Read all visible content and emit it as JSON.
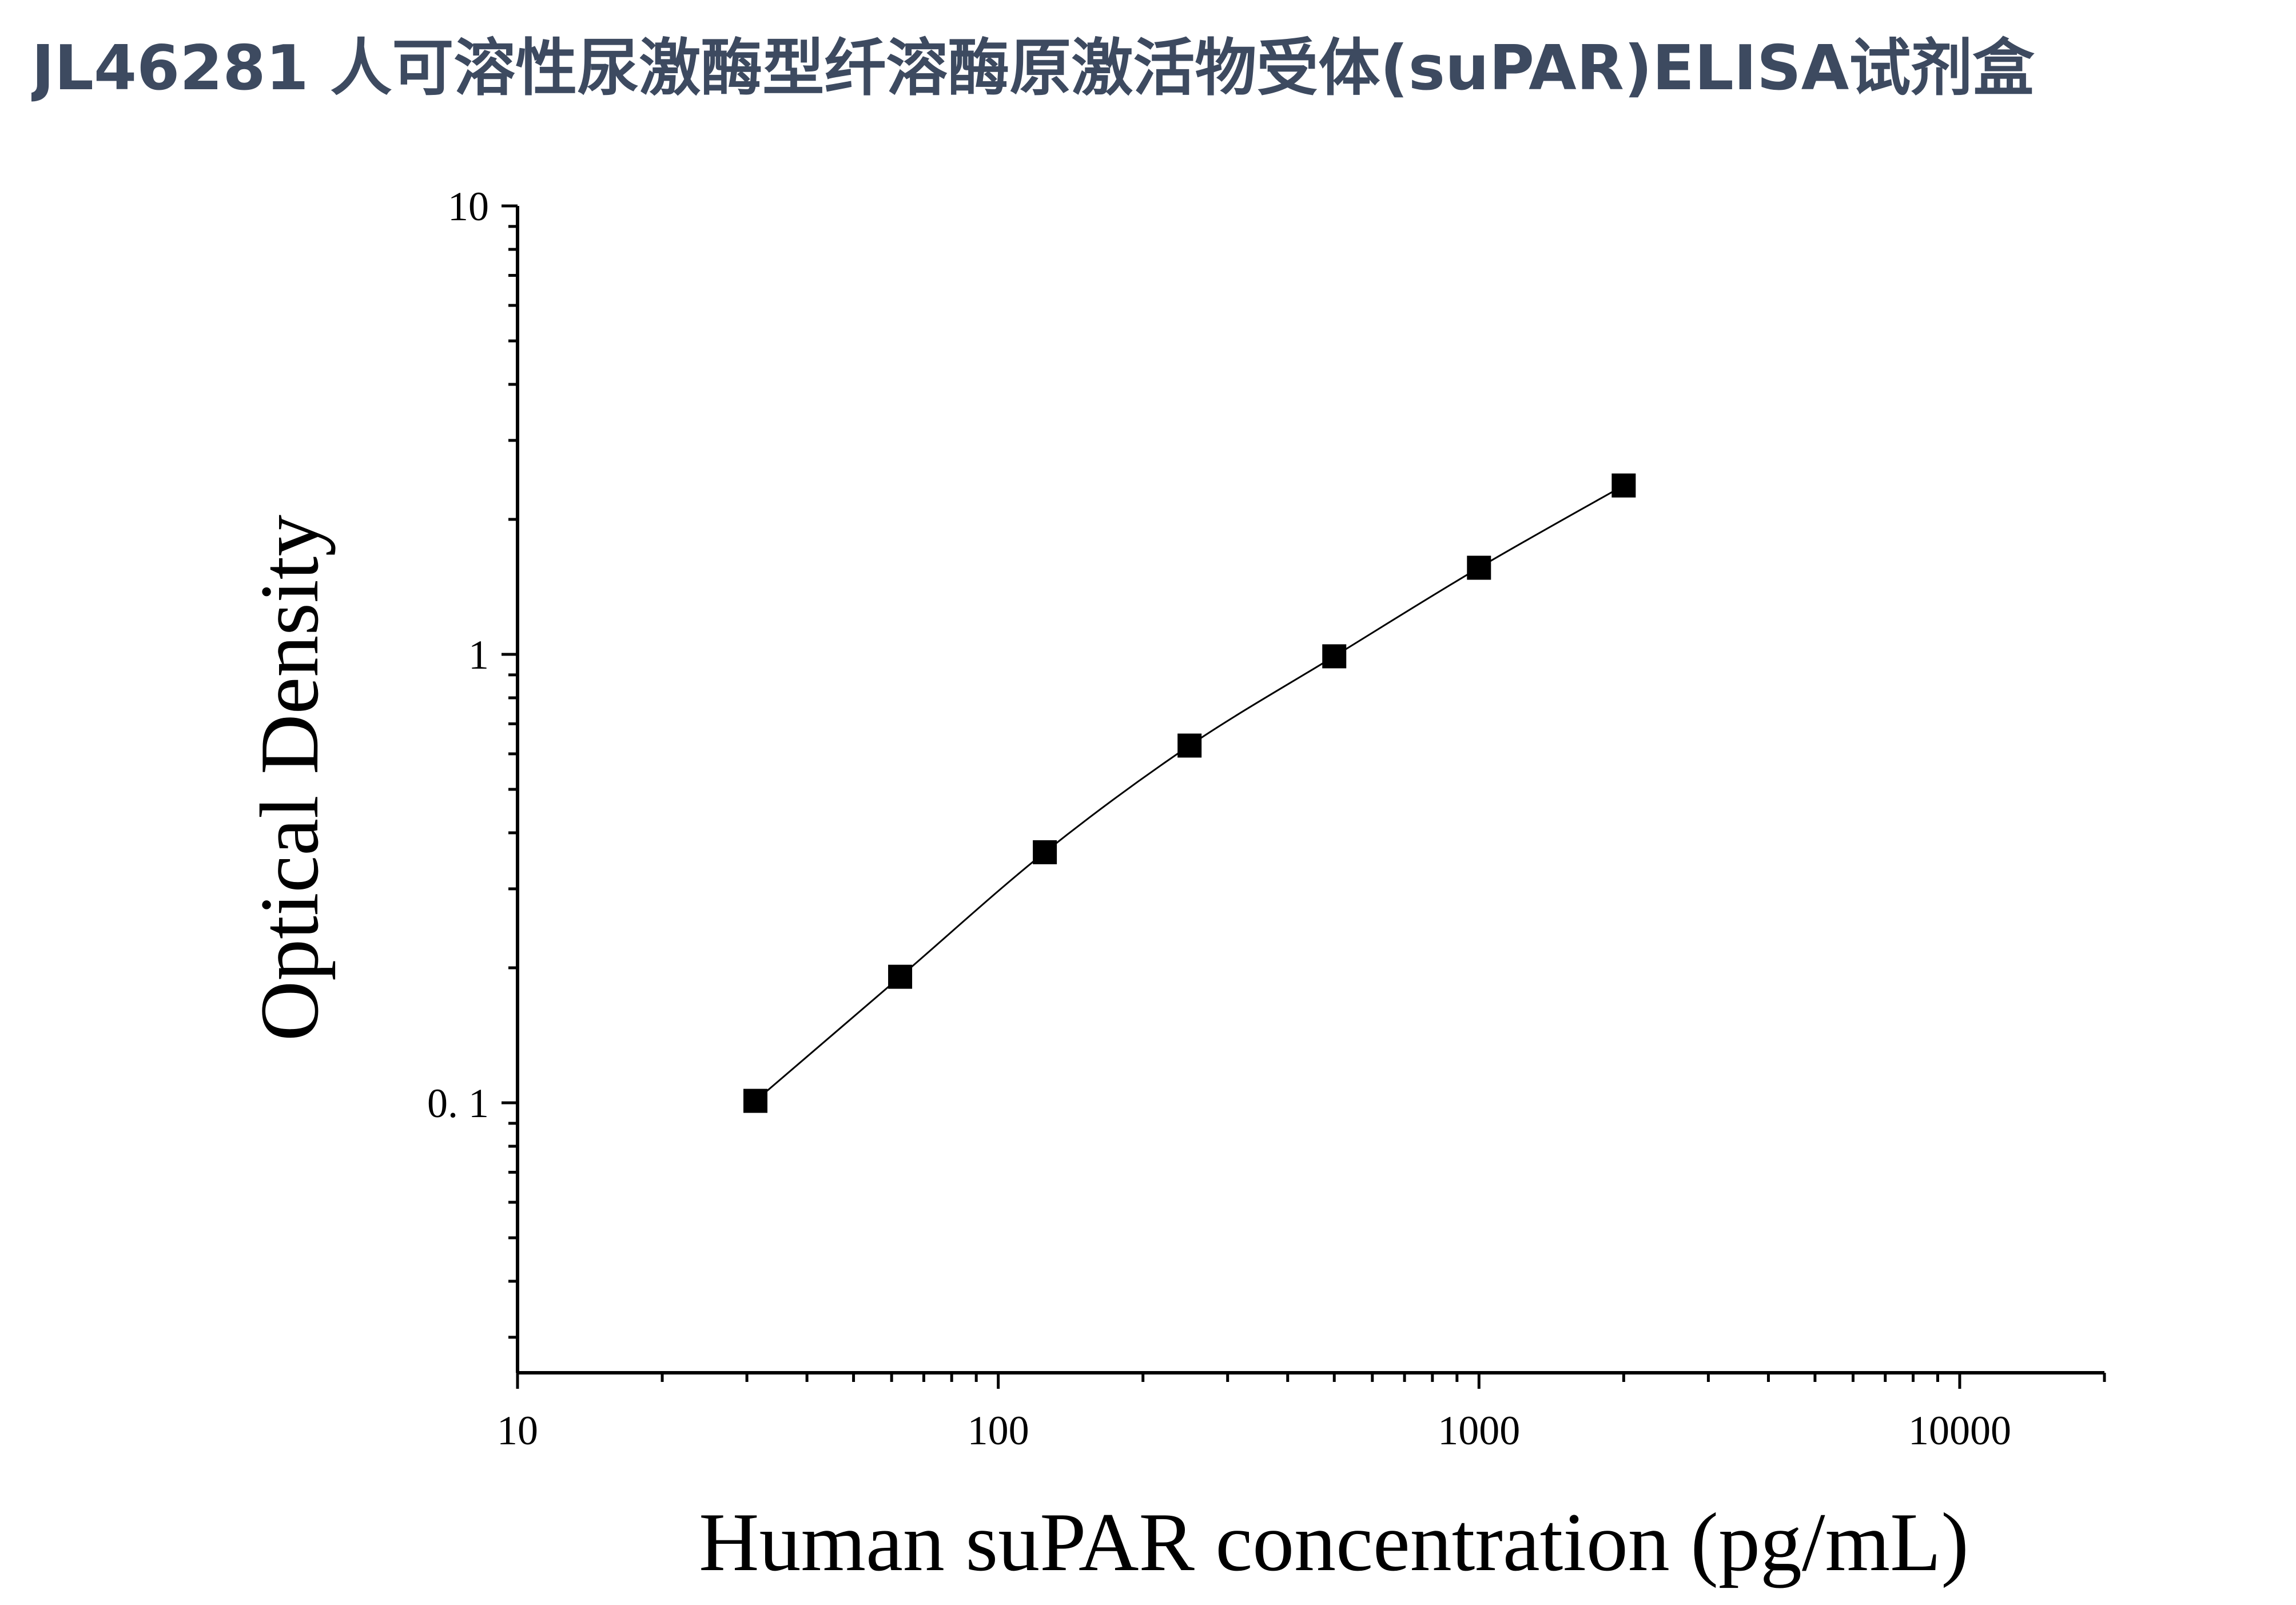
{
  "title": "JL46281 人可溶性尿激酶型纤溶酶原激活物受体(suPAR)ELISA试剂盒",
  "colors": {
    "title": "#3d4a60",
    "axes": "#000000",
    "markers": "#000000",
    "curve": "#000000"
  },
  "chart_data": {
    "type": "scatter",
    "xscale": "log",
    "yscale": "log",
    "xlabel": "Human suPAR concentration (pg/mL)",
    "ylabel": "Optical Density",
    "xlim": [
      10,
      20000
    ],
    "ylim": [
      0.025,
      10
    ],
    "xticks": [
      {
        "value": 10,
        "label": "10"
      },
      {
        "value": 100,
        "label": "100"
      },
      {
        "value": 1000,
        "label": "1000"
      },
      {
        "value": 10000,
        "label": "10000"
      }
    ],
    "yticks": [
      {
        "value": 0.1,
        "label": "0. 1"
      },
      {
        "value": 1,
        "label": "1"
      },
      {
        "value": 10,
        "label": "10"
      }
    ],
    "grid": false,
    "legend": "none",
    "marker": "square",
    "fit_curve": true,
    "series": [
      {
        "x": [
          31.25,
          62.5,
          125,
          250,
          500,
          1000,
          2000
        ],
        "y": [
          0.101,
          0.191,
          0.362,
          0.626,
          0.99,
          1.56,
          2.38
        ]
      }
    ]
  }
}
